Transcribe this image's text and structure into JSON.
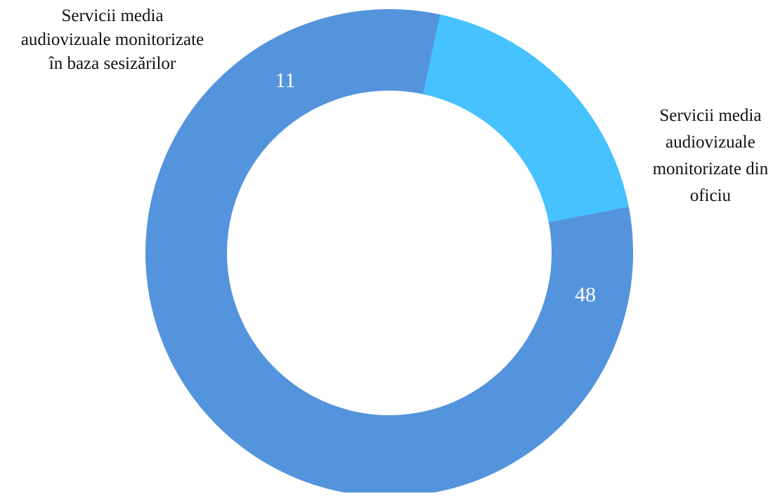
{
  "chart_data": {
    "type": "pie",
    "title": "",
    "categories": [
      "Servicii media audiovizuale monitorizate în baza sesizărilor",
      "Servicii media audiovizuale monitorizate din oficiu"
    ],
    "values": [
      11,
      48
    ],
    "label_lines": [
      [
        "Servicii media",
        "audiovizuale monitorizate",
        "în baza sesizărilor"
      ],
      [
        "Servicii media",
        "audiovizuale",
        "monitorizate din",
        "oficiu"
      ]
    ],
    "colors": [
      "#45c2ff",
      "#5494dc"
    ],
    "donut": true,
    "legend": "none",
    "data_labels": true
  }
}
